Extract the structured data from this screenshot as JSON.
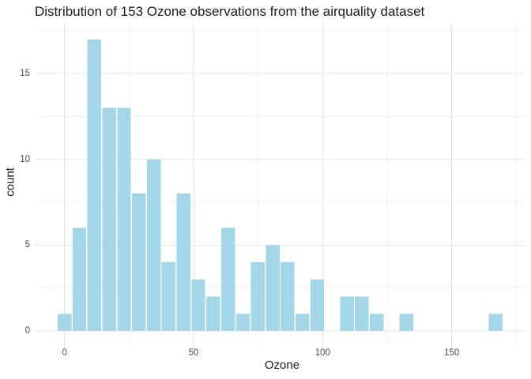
{
  "title": "Distribution of 153 Ozone observations from the airquality dataset",
  "chart_data": {
    "type": "bar",
    "subtype": "histogram",
    "title": "Distribution of 153 Ozone observations from the airquality dataset",
    "xlabel": "Ozone",
    "ylabel": "count",
    "x_tick_labels": [
      "0",
      "50",
      "100",
      "150"
    ],
    "x_tick_values": [
      0,
      50,
      100,
      150
    ],
    "x_minor_tick_values": [
      25,
      75,
      125,
      175
    ],
    "y_tick_labels": [
      "0",
      "5",
      "10",
      "15"
    ],
    "y_tick_values": [
      0,
      5,
      10,
      15
    ],
    "y_minor_tick_values": [
      2.5,
      7.5,
      12.5,
      17.5
    ],
    "xlim": [
      -10,
      178.5
    ],
    "ylim": [
      -0.85,
      17.85
    ],
    "grid": true,
    "legend_position": "none",
    "bin_width": 5.7586,
    "bin_start": -2.8793,
    "bin_centers": [
      0,
      5.8,
      11.5,
      17.3,
      23.0,
      28.8,
      34.6,
      40.3,
      46.1,
      51.8,
      57.6,
      63.3,
      69.1,
      74.9,
      80.6,
      86.4,
      92.1,
      97.9,
      103.7,
      109.4,
      115.2,
      120.9,
      126.7,
      132.4,
      138.2,
      144.0,
      149.7,
      155.5,
      161.2,
      167.0
    ],
    "counts": [
      1,
      6,
      17,
      13,
      13,
      8,
      10,
      4,
      8,
      3,
      2,
      6,
      1,
      4,
      5,
      4,
      1,
      3,
      0,
      2,
      2,
      1,
      0,
      1,
      0,
      0,
      0,
      0,
      0,
      1
    ],
    "colors": {
      "bar_fill": "#A3D7E8",
      "bar_gap": "#FFFFFF",
      "grid_major": "#E4E4E4",
      "grid_minor": "#F2F2F2",
      "axis_tick": "#D6D6D6",
      "tick_label": "#4D4D4D",
      "text": "#1A1A1A",
      "background": "#FFFFFF"
    }
  }
}
